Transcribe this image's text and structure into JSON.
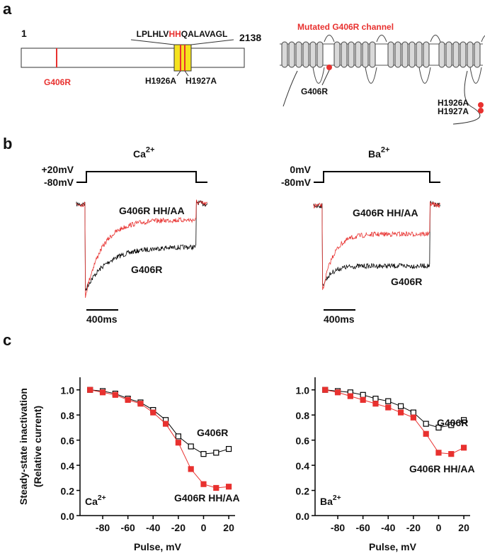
{
  "figure": {
    "panel_a": {
      "label": "a",
      "start": "1",
      "end": "2138",
      "seq_left": "LPLHLV",
      "seq_mid": "HH",
      "seq_right": "QALAVAGL",
      "mutation": "G406R",
      "site_1": "H1926A",
      "site_2": "H1927A",
      "channel_title": "Mutated G406R channel",
      "channel_mutation": "G406R",
      "channel_site_1": "H1926A",
      "channel_site_2": "H1927A"
    },
    "panel_b": {
      "label": "b",
      "recordings": [
        {
          "ion": "Ca",
          "charge": "2+",
          "test_voltage": "+20mV",
          "holding_voltage": "-80mV",
          "trace_red": "G406R HH/AA",
          "trace_black": "G406R",
          "scale_bar": "400ms"
        },
        {
          "ion": "Ba",
          "charge": "2+",
          "test_voltage": "0mV",
          "holding_voltage": "-80mV",
          "trace_red": "G406R HH/AA",
          "trace_black": "G406R",
          "scale_bar": "400ms"
        }
      ]
    },
    "panel_c": {
      "label": "c"
    }
  },
  "chart_data": [
    {
      "type": "line",
      "ion": "Ca",
      "charge": "2+",
      "y_label": "Steady-state inactivation",
      "y_label_2": "(Relative current)",
      "x_label": "Pulse, mV",
      "x": [
        -90,
        -80,
        -70,
        -60,
        -50,
        -40,
        -30,
        -20,
        -10,
        0,
        10,
        20
      ],
      "xlim": [
        -98,
        25
      ],
      "xticks": [
        -80,
        -60,
        -40,
        -20,
        0,
        20
      ],
      "ylim": [
        0,
        1.1
      ],
      "yticks": [
        {
          "value": 0,
          "label": "0.0"
        },
        {
          "value": 0.2,
          "label": "0.2"
        },
        {
          "value": 0.4,
          "label": "0.4"
        },
        {
          "value": 0.6,
          "label": "0.6"
        },
        {
          "value": 0.8,
          "label": "0.8"
        },
        {
          "value": 1,
          "label": "1.0"
        }
      ],
      "series": [
        {
          "name": "G406R",
          "color": "#000000",
          "marker": "open-square",
          "values": [
            1.0,
            0.99,
            0.97,
            0.93,
            0.9,
            0.84,
            0.76,
            0.63,
            0.55,
            0.49,
            0.5,
            0.53
          ]
        },
        {
          "name": "G406R HH/AA",
          "color": "#e8312f",
          "marker": "filled-square",
          "values": [
            1.0,
            0.98,
            0.96,
            0.92,
            0.89,
            0.82,
            0.73,
            0.58,
            0.37,
            0.25,
            0.22,
            0.23
          ]
        }
      ]
    },
    {
      "type": "line",
      "ion": "Ba",
      "charge": "2+",
      "x_label": "Pulse, mV",
      "x": [
        -90,
        -80,
        -70,
        -60,
        -50,
        -40,
        -30,
        -20,
        -10,
        0,
        10,
        20
      ],
      "xlim": [
        -98,
        25
      ],
      "xticks": [
        -80,
        -60,
        -40,
        -20,
        0,
        20
      ],
      "ylim": [
        0,
        1.1
      ],
      "yticks": [
        {
          "value": 0,
          "label": "0.0"
        },
        {
          "value": 0.2,
          "label": "0.2"
        },
        {
          "value": 0.4,
          "label": "0.4"
        },
        {
          "value": 0.6,
          "label": "0.6"
        },
        {
          "value": 0.8,
          "label": "0.8"
        },
        {
          "value": 1,
          "label": "1.0"
        }
      ],
      "series": [
        {
          "name": "G406R",
          "color": "#000000",
          "marker": "open-square",
          "values": [
            1.0,
            0.99,
            0.98,
            0.96,
            0.93,
            0.91,
            0.87,
            0.82,
            0.73,
            0.7,
            0.72,
            0.76
          ]
        },
        {
          "name": "G406R HH/AA",
          "color": "#e8312f",
          "marker": "filled-square",
          "values": [
            1.0,
            0.98,
            0.95,
            0.92,
            0.89,
            0.86,
            0.82,
            0.78,
            0.65,
            0.5,
            0.49,
            0.54
          ]
        }
      ]
    }
  ]
}
